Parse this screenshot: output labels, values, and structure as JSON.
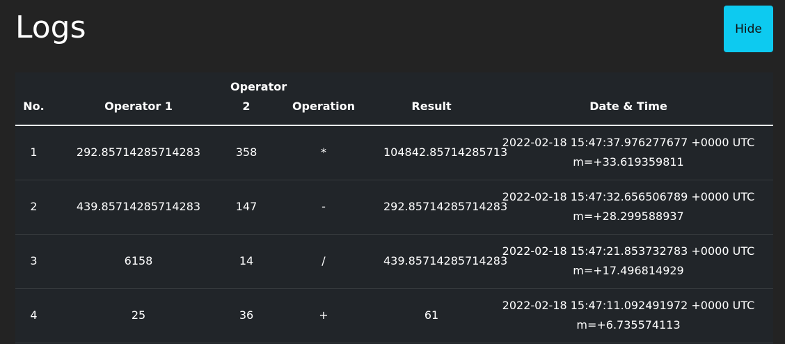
{
  "header": {
    "title": "Logs",
    "hide_label": "Hide"
  },
  "table": {
    "columns": {
      "no": "No.",
      "op1": "Operator 1",
      "op2": "Operator 2",
      "operation": "Operation",
      "result": "Result",
      "datetime": "Date & Time"
    },
    "rows": [
      {
        "no": "1",
        "op1": "292.85714285714283",
        "op2": "358",
        "operation": "*",
        "result": "104842.85714285713",
        "datetime_line1": "2022-02-18 15:47:37.976277677 +0000 UTC",
        "datetime_line2": "m=+33.619359811"
      },
      {
        "no": "2",
        "op1": "439.85714285714283",
        "op2": "147",
        "operation": "-",
        "result": "292.85714285714283",
        "datetime_line1": "2022-02-18 15:47:32.656506789 +0000 UTC",
        "datetime_line2": "m=+28.299588937"
      },
      {
        "no": "3",
        "op1": "6158",
        "op2": "14",
        "operation": "/",
        "result": "439.85714285714283",
        "datetime_line1": "2022-02-18 15:47:21.853732783 +0000 UTC",
        "datetime_line2": "m=+17.496814929"
      },
      {
        "no": "4",
        "op1": "25",
        "op2": "36",
        "operation": "+",
        "result": "61",
        "datetime_line1": "2022-02-18 15:47:11.092491972 +0000 UTC",
        "datetime_line2": "m=+6.735574113"
      }
    ]
  },
  "colors": {
    "page_background": "#232323",
    "table_background": "#212529",
    "accent": "#0dcaf0"
  }
}
